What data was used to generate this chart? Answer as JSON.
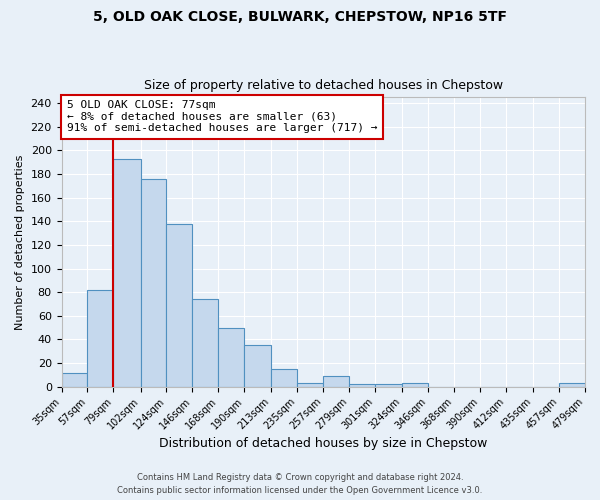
{
  "title": "5, OLD OAK CLOSE, BULWARK, CHEPSTOW, NP16 5TF",
  "subtitle": "Size of property relative to detached houses in Chepstow",
  "xlabel": "Distribution of detached houses by size in Chepstow",
  "ylabel": "Number of detached properties",
  "all_bins": [
    35,
    57,
    79,
    102,
    124,
    146,
    168,
    190,
    213,
    235,
    257,
    279,
    301,
    324,
    346,
    368,
    390,
    412,
    435,
    457,
    479
  ],
  "all_values": [
    12,
    82,
    193,
    176,
    138,
    74,
    50,
    35,
    15,
    3,
    9,
    2,
    2,
    3,
    0,
    0,
    0,
    0,
    0,
    3
  ],
  "bar_color": "#c5d8ed",
  "bar_edge_color": "#5090c0",
  "ylim": [
    0,
    245
  ],
  "yticks": [
    0,
    20,
    40,
    60,
    80,
    100,
    120,
    140,
    160,
    180,
    200,
    220,
    240
  ],
  "annotation_title": "5 OLD OAK CLOSE: 77sqm",
  "annotation_line1": "← 8% of detached houses are smaller (63)",
  "annotation_line2": "91% of semi-detached houses are larger (717) →",
  "annotation_box_color": "#ffffff",
  "annotation_box_edge": "#cc0000",
  "vline_color": "#cc0000",
  "footer1": "Contains HM Land Registry data © Crown copyright and database right 2024.",
  "footer2": "Contains public sector information licensed under the Open Government Licence v3.0.",
  "background_color": "#e8f0f8",
  "grid_color": "#ffffff"
}
